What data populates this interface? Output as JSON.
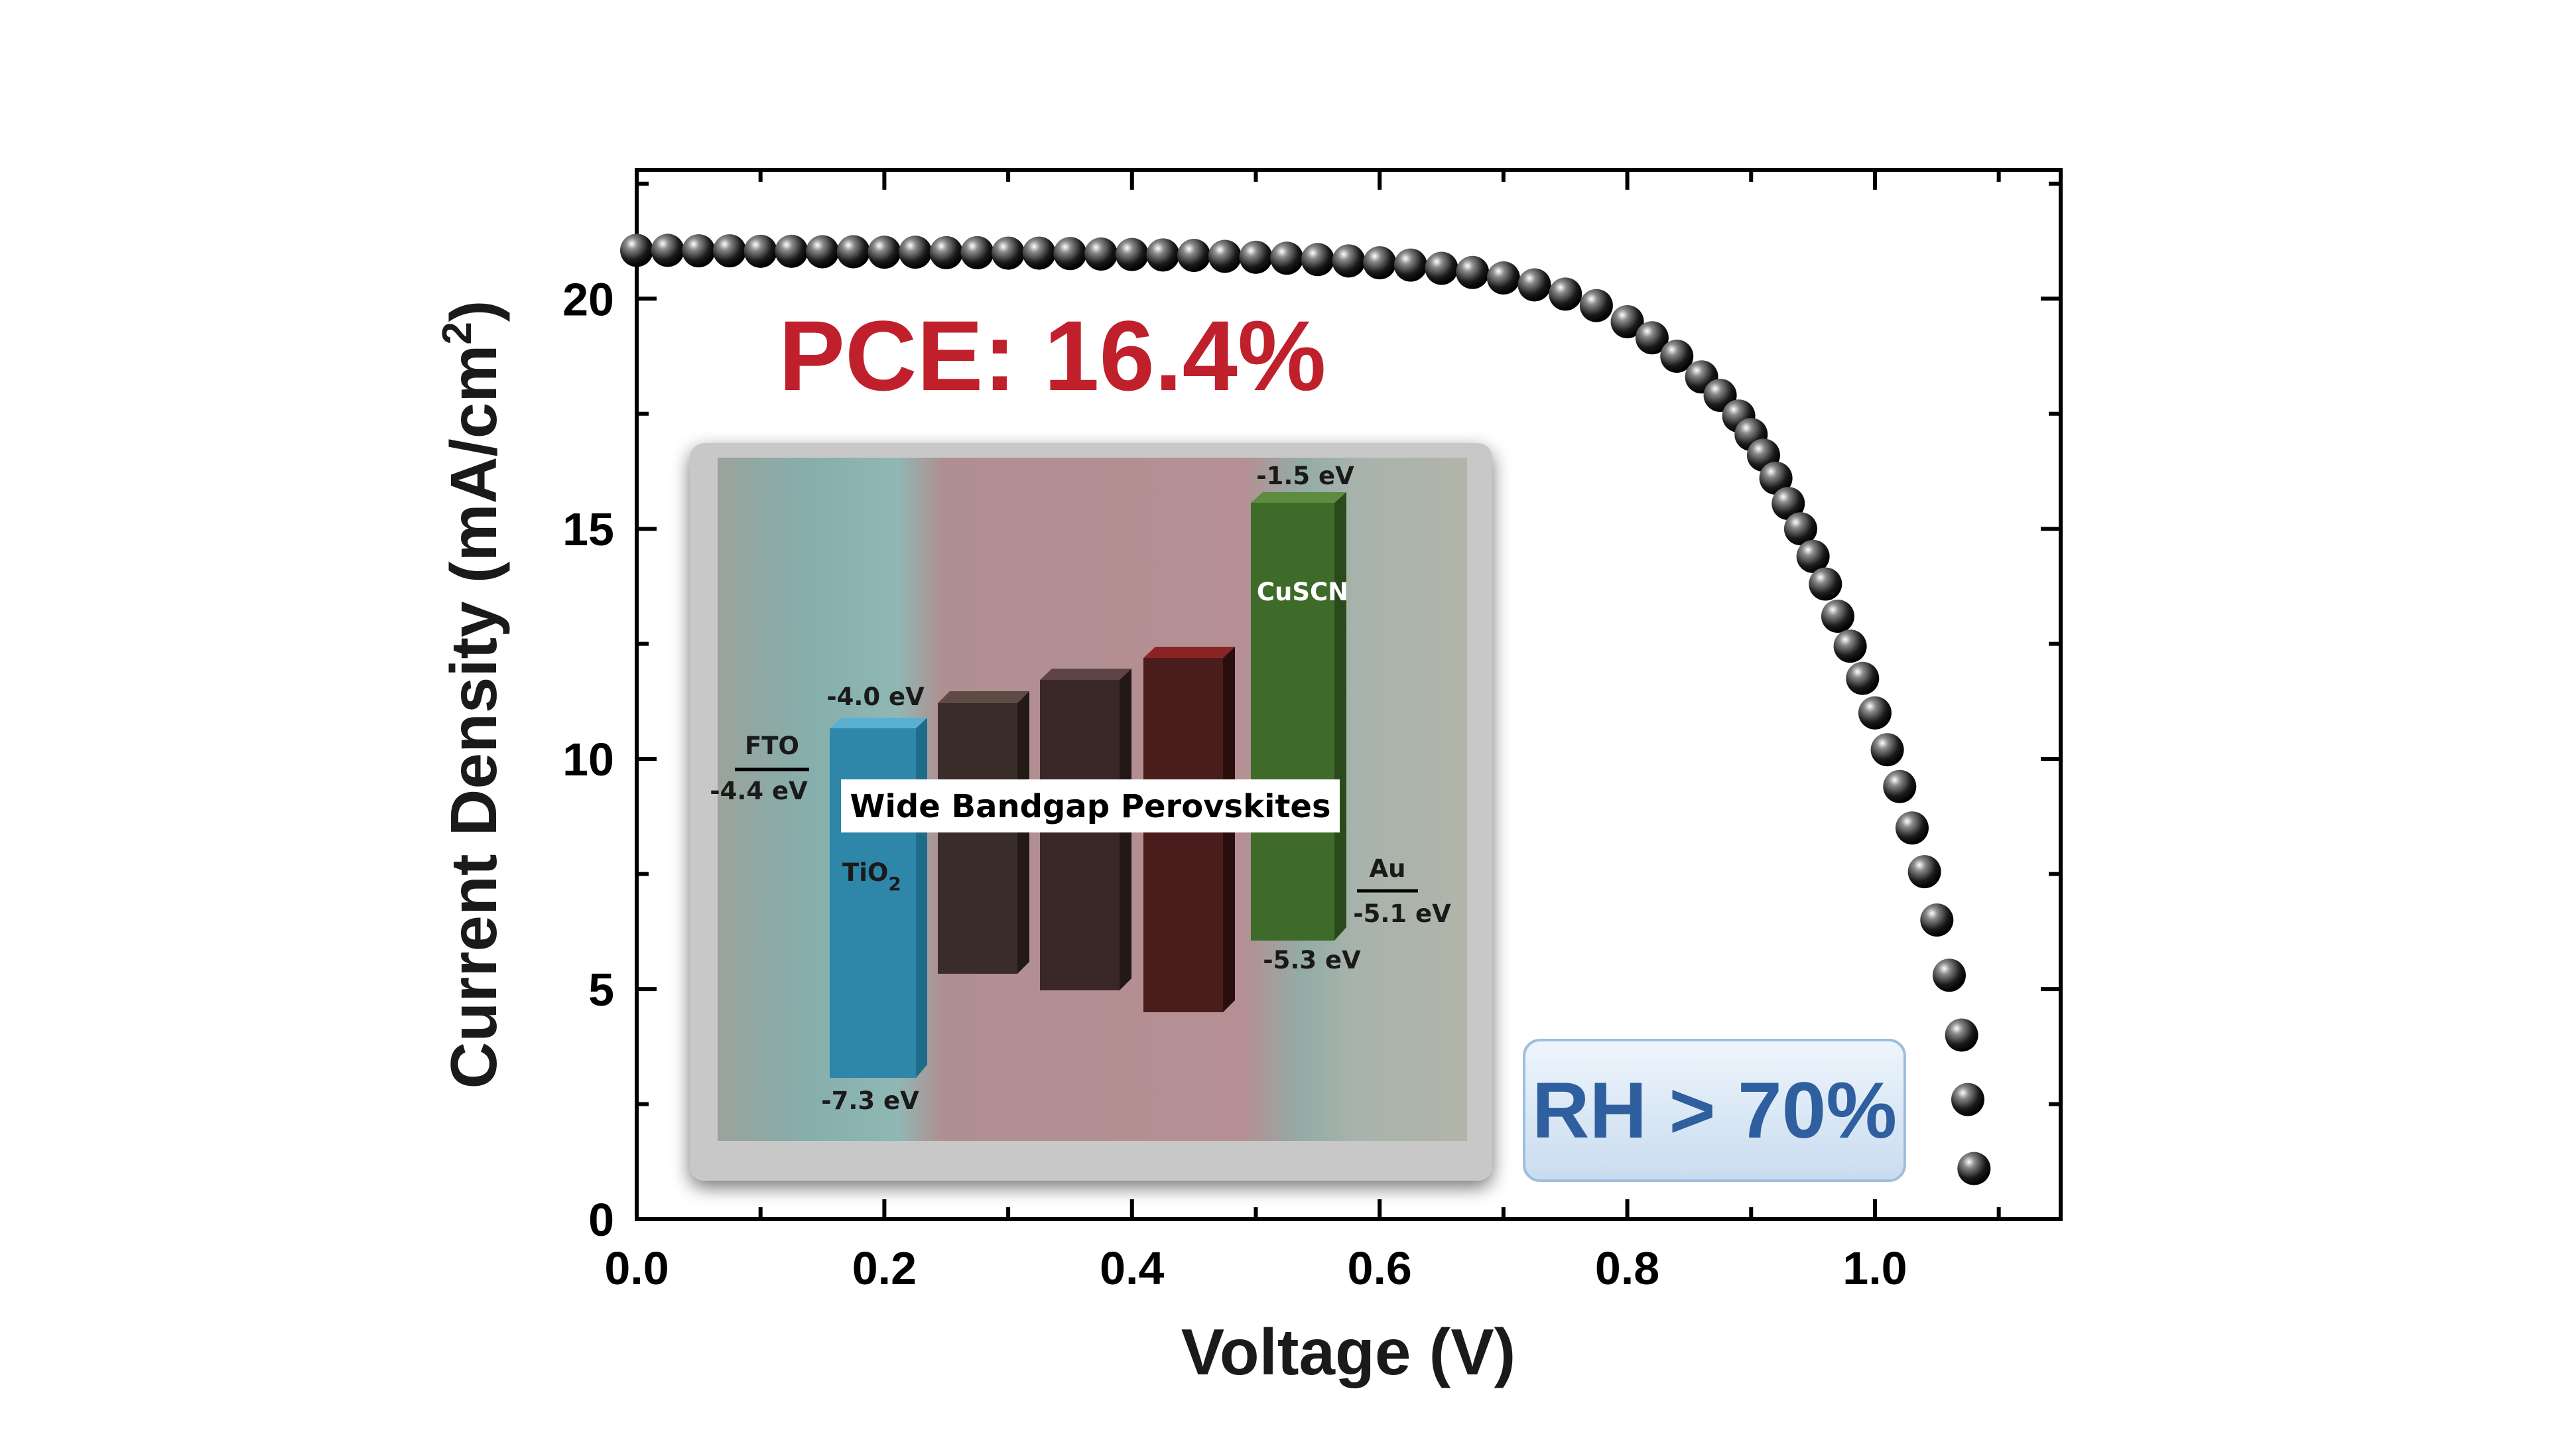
{
  "chart_data": {
    "type": "scatter",
    "xlabel": "Voltage (V)",
    "ylabel_main": "Current Density (mA/cm",
    "ylabel_sup": "2",
    "ylabel_close": ")",
    "xlim": [
      0,
      1.15
    ],
    "ylim": [
      0,
      22.8
    ],
    "x_ticks": [
      "0.0",
      "0.2",
      "0.4",
      "0.6",
      "0.8",
      "1.0"
    ],
    "y_ticks": [
      "0",
      "5",
      "10",
      "15",
      "20"
    ],
    "grid": false,
    "series": [
      {
        "marker": "sphere",
        "color": "#111111",
        "x": [
          0.0,
          0.025,
          0.05,
          0.075,
          0.1,
          0.125,
          0.15,
          0.175,
          0.2,
          0.225,
          0.25,
          0.275,
          0.3,
          0.325,
          0.35,
          0.375,
          0.4,
          0.425,
          0.45,
          0.475,
          0.5,
          0.525,
          0.55,
          0.575,
          0.6,
          0.625,
          0.65,
          0.675,
          0.7,
          0.725,
          0.75,
          0.775,
          0.8,
          0.82,
          0.84,
          0.86,
          0.875,
          0.89,
          0.9,
          0.91,
          0.92,
          0.93,
          0.94,
          0.95,
          0.96,
          0.97,
          0.98,
          0.99,
          1.0,
          1.01,
          1.02,
          1.03,
          1.04,
          1.05,
          1.06,
          1.07,
          1.075,
          1.08
        ],
        "y": [
          21.05,
          21.05,
          21.04,
          21.04,
          21.03,
          21.03,
          21.02,
          21.02,
          21.01,
          21.01,
          21.0,
          21.0,
          20.99,
          20.99,
          20.98,
          20.97,
          20.96,
          20.95,
          20.94,
          20.92,
          20.9,
          20.88,
          20.85,
          20.82,
          20.78,
          20.73,
          20.66,
          20.57,
          20.45,
          20.3,
          20.1,
          19.85,
          19.5,
          19.15,
          18.75,
          18.3,
          17.9,
          17.45,
          17.05,
          16.6,
          16.1,
          15.55,
          15.0,
          14.4,
          13.8,
          13.1,
          12.45,
          11.75,
          11.0,
          10.2,
          9.4,
          8.5,
          7.55,
          6.5,
          5.3,
          4.0,
          2.6,
          1.1
        ]
      }
    ],
    "annotations": {
      "pce": "PCE: 16.4%",
      "rh": "RH > 70%"
    }
  },
  "inset": {
    "title": "Wide Bandgap Perovskites",
    "fto_name": "FTO",
    "fto_level": "-4.4 eV",
    "tio2_name": "TiO",
    "tio2_sub": "2",
    "tio2_top": "-4.0 eV",
    "tio2_bottom": "-7.3 eV",
    "cuscn_name": "CuSCN",
    "cuscn_top": "-1.5 eV",
    "cuscn_bottom": "-5.3 eV",
    "au_name": "Au",
    "au_level": "-5.1 eV",
    "colors": {
      "tio2": "#2e86a8",
      "cuscn": "#3f6b2a",
      "perovskite": [
        "#3a2c28",
        "#3a2828",
        "#4a1c1c"
      ]
    }
  }
}
